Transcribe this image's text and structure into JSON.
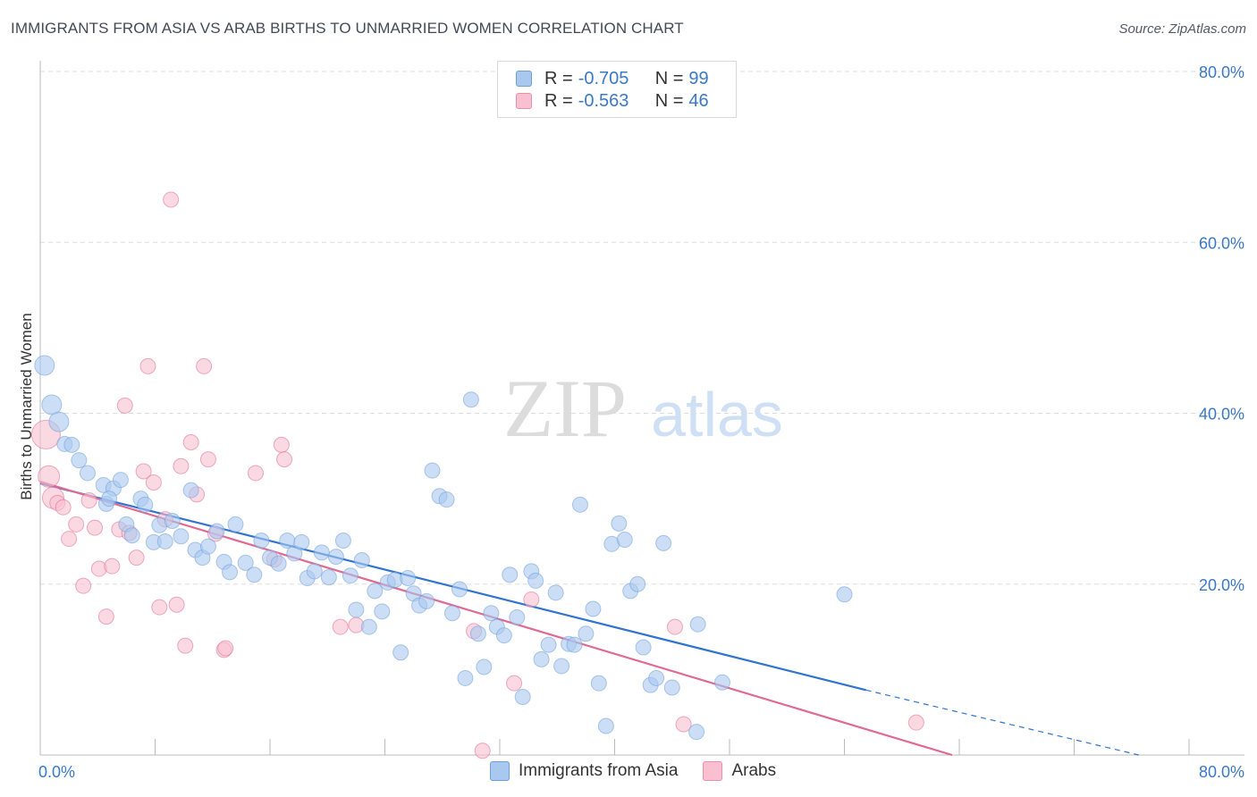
{
  "title": "IMMIGRANTS FROM ASIA VS ARAB BIRTHS TO UNMARRIED WOMEN CORRELATION CHART",
  "source": "Source: ZipAtlas.com",
  "watermark": {
    "zip": "ZIP",
    "atlas": "atlas"
  },
  "legend": {
    "rows": [
      {
        "r_label": "R =",
        "r_value": "-0.705",
        "n_label": "N =",
        "n_value": "99",
        "color": "#a9c8f0",
        "border": "#6f9fd8"
      },
      {
        "r_label": "R =",
        "r_value": "-0.563",
        "n_label": "N =",
        "n_value": "46",
        "color": "#f8c0d0",
        "border": "#e890aa"
      }
    ]
  },
  "bottom_legend": [
    {
      "label": "Immigrants from Asia",
      "color": "#a9c8f0",
      "border": "#6f9fd8"
    },
    {
      "label": "Arabs",
      "color": "#f8c0d0",
      "border": "#e890aa"
    }
  ],
  "chart_data": {
    "type": "scatter",
    "title": "IMMIGRANTS FROM ASIA VS ARAB BIRTHS TO UNMARRIED WOMEN CORRELATION CHART",
    "xlabel": "",
    "ylabel": "Births to Unmarried Women",
    "xlim": [
      0,
      80
    ],
    "ylim": [
      0,
      80
    ],
    "x_tick_labels": [
      "0.0%",
      "80.0%"
    ],
    "y_tick_labels": [
      "20.0%",
      "40.0%",
      "60.0%",
      "80.0%"
    ],
    "y_ticks": [
      20,
      40,
      60,
      80
    ],
    "grid": true,
    "legend_position": "top-center",
    "series": [
      {
        "name": "Immigrants from Asia",
        "color": "#6f9fd8",
        "fill": "#a9c8f0",
        "trend": {
          "x0": 0,
          "y0": 31.8,
          "x1": 57.5,
          "y1": 7.6,
          "dash_to_x": 76.5,
          "dash_to_y": 0
        },
        "points": [
          [
            0.3,
            45.6
          ],
          [
            0.8,
            41.0
          ],
          [
            1.3,
            39.0
          ],
          [
            1.7,
            36.4
          ],
          [
            2.2,
            36.3
          ],
          [
            2.7,
            34.5
          ],
          [
            3.3,
            33.0
          ],
          [
            4.4,
            31.6
          ],
          [
            5.1,
            31.2
          ],
          [
            5.6,
            32.2
          ],
          [
            4.6,
            29.4
          ],
          [
            4.8,
            30.0
          ],
          [
            6.0,
            27.0
          ],
          [
            6.4,
            25.7
          ],
          [
            7.0,
            30.0
          ],
          [
            7.3,
            29.3
          ],
          [
            7.9,
            24.9
          ],
          [
            8.3,
            26.9
          ],
          [
            8.7,
            25.0
          ],
          [
            9.2,
            27.4
          ],
          [
            9.8,
            25.6
          ],
          [
            10.5,
            31.0
          ],
          [
            10.8,
            24.0
          ],
          [
            11.3,
            23.1
          ],
          [
            11.7,
            24.4
          ],
          [
            12.3,
            26.2
          ],
          [
            12.8,
            22.6
          ],
          [
            13.2,
            21.4
          ],
          [
            13.6,
            27.0
          ],
          [
            14.3,
            22.5
          ],
          [
            14.9,
            21.1
          ],
          [
            15.4,
            25.1
          ],
          [
            16.0,
            23.1
          ],
          [
            16.6,
            22.4
          ],
          [
            17.2,
            25.1
          ],
          [
            17.7,
            23.6
          ],
          [
            18.2,
            24.9
          ],
          [
            18.6,
            20.7
          ],
          [
            19.1,
            21.5
          ],
          [
            19.6,
            23.7
          ],
          [
            20.1,
            20.8
          ],
          [
            20.6,
            23.2
          ],
          [
            21.1,
            25.1
          ],
          [
            21.6,
            21.0
          ],
          [
            22.0,
            17.0
          ],
          [
            22.4,
            22.8
          ],
          [
            22.9,
            15.0
          ],
          [
            23.3,
            19.2
          ],
          [
            23.8,
            16.8
          ],
          [
            24.2,
            20.2
          ],
          [
            24.7,
            20.5
          ],
          [
            25.1,
            12.0
          ],
          [
            25.6,
            20.7
          ],
          [
            26.0,
            18.9
          ],
          [
            26.4,
            17.5
          ],
          [
            26.9,
            18.0
          ],
          [
            27.3,
            33.3
          ],
          [
            27.8,
            30.3
          ],
          [
            28.3,
            29.9
          ],
          [
            28.7,
            16.6
          ],
          [
            29.2,
            19.4
          ],
          [
            29.6,
            9.0
          ],
          [
            30.0,
            41.6
          ],
          [
            30.5,
            14.2
          ],
          [
            30.9,
            10.3
          ],
          [
            31.4,
            16.6
          ],
          [
            31.8,
            15.0
          ],
          [
            32.3,
            14.0
          ],
          [
            32.7,
            21.1
          ],
          [
            33.2,
            16.1
          ],
          [
            33.6,
            6.8
          ],
          [
            34.2,
            21.5
          ],
          [
            34.5,
            20.4
          ],
          [
            34.9,
            11.2
          ],
          [
            35.4,
            12.9
          ],
          [
            35.9,
            19.0
          ],
          [
            36.3,
            10.4
          ],
          [
            36.8,
            13.0
          ],
          [
            37.2,
            12.9
          ],
          [
            37.6,
            29.3
          ],
          [
            38.0,
            14.2
          ],
          [
            38.5,
            17.1
          ],
          [
            38.9,
            8.4
          ],
          [
            39.4,
            3.4
          ],
          [
            39.8,
            24.7
          ],
          [
            40.3,
            27.1
          ],
          [
            40.7,
            25.2
          ],
          [
            41.1,
            19.2
          ],
          [
            41.6,
            20.0
          ],
          [
            42.0,
            12.6
          ],
          [
            42.5,
            8.2
          ],
          [
            42.9,
            9.0
          ],
          [
            43.4,
            24.8
          ],
          [
            44.0,
            7.9
          ],
          [
            45.7,
            2.7
          ],
          [
            45.8,
            15.3
          ],
          [
            47.5,
            8.5
          ],
          [
            56.0,
            18.8
          ]
        ]
      },
      {
        "name": "Arabs",
        "color": "#e06a92",
        "fill": "#f8c0d0",
        "trend": {
          "x0": 0,
          "y0": 32.0,
          "x1": 63.5,
          "y1": 0
        },
        "points": [
          [
            0.4,
            37.5
          ],
          [
            0.6,
            32.6
          ],
          [
            0.9,
            30.1
          ],
          [
            1.2,
            29.5
          ],
          [
            1.6,
            29.0
          ],
          [
            2.0,
            25.3
          ],
          [
            2.5,
            27.0
          ],
          [
            3.0,
            19.8
          ],
          [
            3.4,
            29.8
          ],
          [
            3.8,
            26.6
          ],
          [
            4.1,
            21.8
          ],
          [
            4.6,
            16.2
          ],
          [
            5.0,
            22.1
          ],
          [
            5.5,
            26.4
          ],
          [
            5.9,
            40.9
          ],
          [
            6.2,
            26.0
          ],
          [
            6.7,
            23.1
          ],
          [
            7.2,
            33.2
          ],
          [
            7.5,
            45.5
          ],
          [
            7.9,
            31.9
          ],
          [
            8.3,
            17.3
          ],
          [
            8.7,
            27.6
          ],
          [
            9.1,
            65.0
          ],
          [
            9.5,
            17.6
          ],
          [
            9.8,
            33.8
          ],
          [
            10.1,
            12.8
          ],
          [
            10.5,
            36.6
          ],
          [
            10.9,
            30.5
          ],
          [
            11.4,
            45.5
          ],
          [
            11.7,
            34.6
          ],
          [
            12.2,
            25.9
          ],
          [
            12.8,
            12.3
          ],
          [
            12.9,
            12.5
          ],
          [
            15.0,
            33.0
          ],
          [
            16.3,
            22.9
          ],
          [
            16.8,
            36.3
          ],
          [
            17.0,
            34.6
          ],
          [
            20.9,
            15.0
          ],
          [
            22.0,
            15.2
          ],
          [
            30.2,
            14.5
          ],
          [
            30.8,
            0.5
          ],
          [
            33.0,
            8.4
          ],
          [
            34.2,
            18.2
          ],
          [
            44.2,
            15.0
          ],
          [
            44.8,
            3.6
          ],
          [
            61.0,
            3.8
          ]
        ]
      }
    ]
  }
}
